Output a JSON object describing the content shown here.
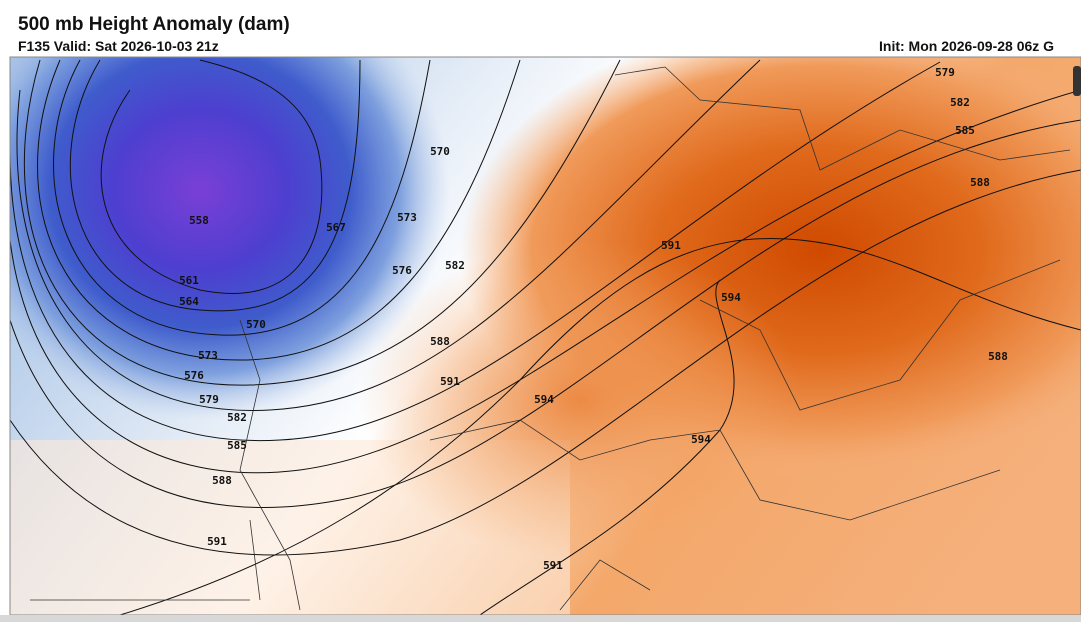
{
  "header": {
    "title": "500 mb Height Anomaly (dam)",
    "valid": "F135 Valid: Sat 2026-10-03 21z",
    "init": "Init: Mon 2026-09-28 06z G"
  },
  "contour_labels": [
    579,
    582,
    585,
    588,
    570,
    573,
    567,
    558,
    561,
    564,
    570,
    576,
    582,
    591,
    594,
    588,
    591,
    594,
    594,
    588,
    573,
    576,
    579,
    582,
    585,
    588,
    591,
    591
  ]
}
